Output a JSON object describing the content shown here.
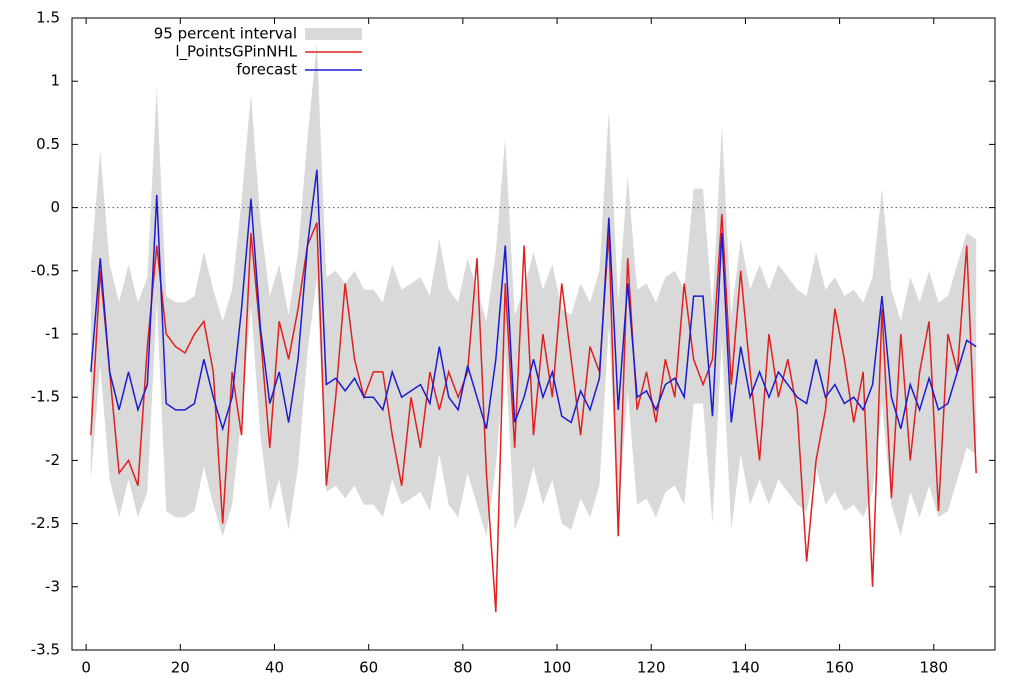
{
  "chart_data": {
    "type": "line",
    "x": [
      1,
      3,
      5,
      7,
      9,
      11,
      13,
      15,
      17,
      19,
      21,
      23,
      25,
      27,
      29,
      31,
      33,
      35,
      37,
      39,
      41,
      43,
      45,
      47,
      49,
      51,
      53,
      55,
      57,
      59,
      61,
      63,
      65,
      67,
      69,
      71,
      73,
      75,
      77,
      79,
      81,
      83,
      85,
      87,
      89,
      91,
      93,
      95,
      97,
      99,
      101,
      103,
      105,
      107,
      109,
      111,
      113,
      115,
      117,
      119,
      121,
      123,
      125,
      127,
      129,
      131,
      133,
      135,
      137,
      139,
      141,
      143,
      145,
      147,
      149,
      151,
      153,
      155,
      157,
      159,
      161,
      163,
      165,
      167,
      169,
      171,
      173,
      175,
      177,
      179,
      181,
      183,
      185,
      187,
      189
    ],
    "band": {
      "name": "95 percent interval",
      "color": "#d9d9d9",
      "upper": [
        -0.45,
        0.45,
        -0.45,
        -0.75,
        -0.45,
        -0.75,
        -0.55,
        0.95,
        -0.7,
        -0.75,
        -0.75,
        -0.7,
        -0.35,
        -0.65,
        -0.9,
        -0.65,
        0.05,
        0.9,
        -0.1,
        -0.7,
        -0.45,
        -0.85,
        -0.35,
        0.55,
        1.3,
        -0.55,
        -0.5,
        -0.6,
        -0.5,
        -0.65,
        -0.65,
        -0.75,
        -0.45,
        -0.65,
        -0.6,
        -0.55,
        -0.7,
        -0.25,
        -0.65,
        -0.75,
        -0.4,
        -0.65,
        -0.9,
        -0.35,
        0.55,
        -0.85,
        -0.65,
        -0.35,
        -0.65,
        -0.45,
        -0.8,
        -0.85,
        -0.6,
        -0.75,
        -0.5,
        0.77,
        -0.75,
        0.25,
        -0.65,
        -0.6,
        -0.75,
        -0.55,
        -0.5,
        -0.65,
        0.15,
        0.15,
        -0.8,
        0.65,
        -0.85,
        -0.25,
        -0.65,
        -0.45,
        -0.65,
        -0.45,
        -0.55,
        -0.65,
        -0.7,
        -0.35,
        -0.65,
        -0.55,
        -0.7,
        -0.65,
        -0.75,
        -0.55,
        0.15,
        -0.65,
        -0.9,
        -0.55,
        -0.75,
        -0.5,
        -0.75,
        -0.7,
        -0.45,
        -0.2,
        -0.25
      ],
      "lower": [
        -2.15,
        -1.25,
        -2.15,
        -2.45,
        -2.15,
        -2.45,
        -2.25,
        -0.75,
        -2.4,
        -2.45,
        -2.45,
        -2.4,
        -2.05,
        -2.35,
        -2.6,
        -2.35,
        -1.65,
        -0.78,
        -1.8,
        -2.4,
        -2.15,
        -2.55,
        -2.05,
        -1.15,
        -0.55,
        -2.25,
        -2.2,
        -2.3,
        -2.2,
        -2.35,
        -2.35,
        -2.45,
        -2.15,
        -2.35,
        -2.3,
        -2.25,
        -2.4,
        -1.95,
        -2.35,
        -2.45,
        -2.1,
        -2.35,
        -2.6,
        -2.05,
        -1.15,
        -2.55,
        -2.35,
        -2.05,
        -2.35,
        -2.15,
        -2.5,
        -2.55,
        -2.3,
        -2.45,
        -2.2,
        -0.93,
        -2.45,
        -1.45,
        -2.35,
        -2.3,
        -2.45,
        -2.25,
        -2.2,
        -2.35,
        -1.55,
        -1.55,
        -2.5,
        -1.05,
        -2.55,
        -1.95,
        -2.35,
        -2.15,
        -2.35,
        -2.15,
        -2.25,
        -2.35,
        -2.4,
        -2.05,
        -2.35,
        -2.25,
        -2.4,
        -2.35,
        -2.45,
        -2.25,
        -1.55,
        -2.35,
        -2.6,
        -2.25,
        -2.45,
        -2.2,
        -2.45,
        -2.4,
        -2.15,
        -1.9,
        -1.95
      ]
    },
    "series": [
      {
        "name": "l_PointsGPinNHL",
        "color": "#e02020",
        "values": [
          -1.8,
          -0.5,
          -1.3,
          -2.1,
          -2.0,
          -2.2,
          -1.1,
          -0.3,
          -1.0,
          -1.1,
          -1.15,
          -1.0,
          -0.9,
          -1.3,
          -2.5,
          -1.3,
          -1.8,
          -0.2,
          -1.0,
          -1.9,
          -0.9,
          -1.2,
          -0.8,
          -0.3,
          -0.12,
          -2.2,
          -1.5,
          -0.6,
          -1.2,
          -1.5,
          -1.3,
          -1.3,
          -1.8,
          -2.2,
          -1.5,
          -1.9,
          -1.3,
          -1.6,
          -1.3,
          -1.5,
          -1.3,
          -0.4,
          -2.1,
          -3.2,
          -0.6,
          -1.9,
          -0.3,
          -1.8,
          -1.0,
          -1.5,
          -0.6,
          -1.2,
          -1.8,
          -1.1,
          -1.3,
          -0.2,
          -2.6,
          -0.4,
          -1.6,
          -1.3,
          -1.7,
          -1.2,
          -1.5,
          -0.6,
          -1.2,
          -1.4,
          -1.2,
          -0.05,
          -1.4,
          -0.5,
          -1.3,
          -2.0,
          -1.0,
          -1.5,
          -1.2,
          -1.6,
          -2.8,
          -2.0,
          -1.6,
          -0.8,
          -1.2,
          -1.7,
          -1.3,
          -3.0,
          -0.8,
          -2.3,
          -1.0,
          -2.0,
          -1.3,
          -0.9,
          -2.4,
          -1.0,
          -1.3,
          -0.3,
          -2.1
        ]
      },
      {
        "name": "forecast",
        "color": "#1c1cd0",
        "values": [
          -1.3,
          -0.4,
          -1.3,
          -1.6,
          -1.3,
          -1.6,
          -1.4,
          0.1,
          -1.55,
          -1.6,
          -1.6,
          -1.55,
          -1.2,
          -1.5,
          -1.75,
          -1.5,
          -0.8,
          0.07,
          -0.95,
          -1.55,
          -1.3,
          -1.7,
          -1.2,
          -0.3,
          0.3,
          -1.4,
          -1.35,
          -1.45,
          -1.35,
          -1.5,
          -1.5,
          -1.6,
          -1.3,
          -1.5,
          -1.45,
          -1.4,
          -1.55,
          -1.1,
          -1.5,
          -1.6,
          -1.25,
          -1.5,
          -1.75,
          -1.2,
          -0.3,
          -1.7,
          -1.5,
          -1.2,
          -1.5,
          -1.3,
          -1.65,
          -1.7,
          -1.45,
          -1.6,
          -1.35,
          -0.08,
          -1.6,
          -0.6,
          -1.5,
          -1.45,
          -1.6,
          -1.4,
          -1.35,
          -1.5,
          -0.7,
          -0.7,
          -1.65,
          -0.2,
          -1.7,
          -1.1,
          -1.5,
          -1.3,
          -1.5,
          -1.3,
          -1.4,
          -1.5,
          -1.55,
          -1.2,
          -1.5,
          -1.4,
          -1.55,
          -1.5,
          -1.6,
          -1.4,
          -0.7,
          -1.5,
          -1.75,
          -1.4,
          -1.6,
          -1.35,
          -1.6,
          -1.55,
          -1.3,
          -1.05,
          -1.1
        ]
      }
    ],
    "xlim": [
      -3,
      193
    ],
    "ylim": [
      -3.5,
      1.5
    ],
    "xticks": [
      0,
      20,
      40,
      60,
      80,
      100,
      120,
      140,
      160,
      180
    ],
    "yticks": [
      -3.5,
      -3,
      -2.5,
      -2,
      -1.5,
      -1,
      -0.5,
      0,
      0.5,
      1,
      1.5
    ],
    "reference_line": 0,
    "legend": "upper left"
  }
}
